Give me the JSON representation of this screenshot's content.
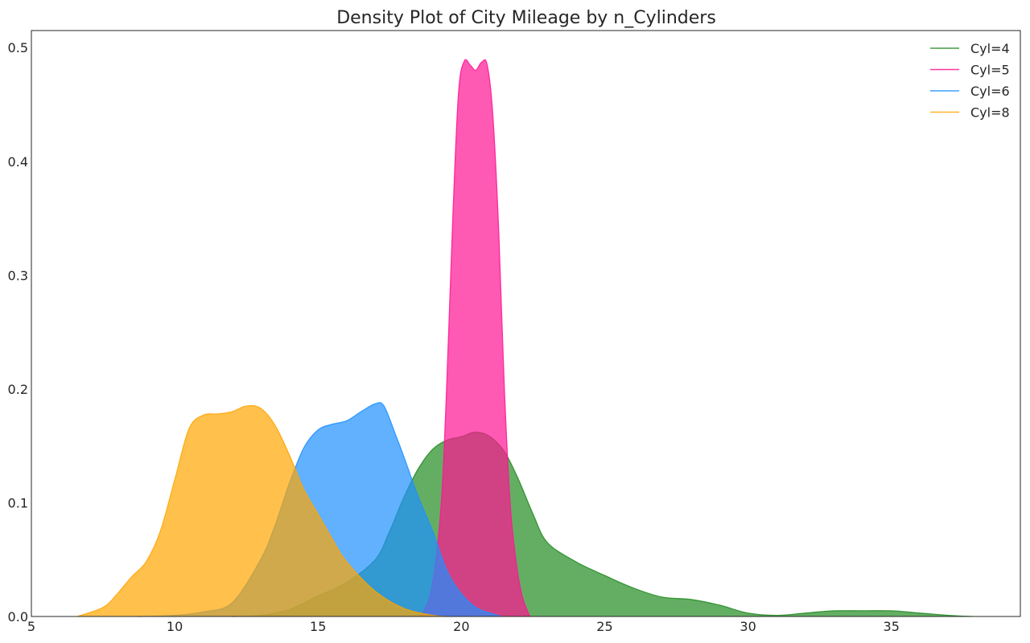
{
  "chart_data": {
    "type": "area",
    "title": "Density Plot of City Mileage by n_Cylinders",
    "xlabel": "",
    "ylabel": "",
    "xlim": [
      5,
      39.5
    ],
    "ylim": [
      0,
      0.515
    ],
    "xticks": [
      5,
      10,
      15,
      20,
      25,
      30,
      35
    ],
    "yticks": [
      0.0,
      0.1,
      0.2,
      0.3,
      0.4,
      0.5
    ],
    "xtick_labels": [
      "5",
      "10",
      "15",
      "20",
      "25",
      "30",
      "35"
    ],
    "ytick_labels": [
      "0.0",
      "0.1",
      "0.2",
      "0.3",
      "0.4",
      "0.5"
    ],
    "grid": false,
    "legend_position": "top-right",
    "series": [
      {
        "name": "Cyl=4",
        "color": "#228b22",
        "x": [
          12.0,
          13.0,
          14.0,
          15.0,
          16.0,
          17.0,
          17.5,
          18.0,
          18.5,
          19.0,
          19.5,
          20.0,
          20.5,
          21.0,
          21.5,
          22.0,
          22.5,
          23.0,
          24.0,
          25.0,
          26.0,
          27.0,
          28.0,
          29.0,
          30.0,
          31.0,
          32.0,
          33.0,
          34.0,
          35.0,
          36.0,
          37.0,
          37.8
        ],
        "y": [
          0.0,
          0.001,
          0.006,
          0.018,
          0.03,
          0.05,
          0.075,
          0.105,
          0.13,
          0.147,
          0.155,
          0.158,
          0.162,
          0.158,
          0.145,
          0.12,
          0.09,
          0.065,
          0.048,
          0.036,
          0.025,
          0.017,
          0.015,
          0.01,
          0.003,
          0.001,
          0.003,
          0.005,
          0.005,
          0.005,
          0.003,
          0.001,
          0.0
        ]
      },
      {
        "name": "Cyl=5",
        "color": "#ff1493",
        "x": [
          18.5,
          18.7,
          19.0,
          19.3,
          19.5,
          19.7,
          19.9,
          20.1,
          20.3,
          20.5,
          20.7,
          20.9,
          21.1,
          21.3,
          21.5,
          21.7,
          21.9,
          22.1,
          22.3,
          22.4
        ],
        "y": [
          0.0,
          0.005,
          0.03,
          0.1,
          0.21,
          0.35,
          0.46,
          0.488,
          0.485,
          0.48,
          0.487,
          0.485,
          0.44,
          0.34,
          0.2,
          0.1,
          0.05,
          0.02,
          0.005,
          0.0
        ]
      },
      {
        "name": "Cyl=6",
        "color": "#1e90ff",
        "x": [
          8.7,
          10.0,
          11.0,
          12.0,
          13.0,
          13.5,
          14.0,
          14.5,
          15.0,
          15.5,
          16.0,
          16.5,
          17.0,
          17.3,
          17.7,
          18.0,
          18.5,
          19.0,
          19.5,
          20.0,
          20.5,
          21.0,
          21.4
        ],
        "y": [
          0.0,
          0.001,
          0.004,
          0.012,
          0.05,
          0.08,
          0.117,
          0.148,
          0.164,
          0.169,
          0.172,
          0.18,
          0.187,
          0.185,
          0.16,
          0.14,
          0.105,
          0.075,
          0.04,
          0.02,
          0.008,
          0.003,
          0.0
        ]
      },
      {
        "name": "Cyl=8",
        "color": "#ffa500",
        "x": [
          6.6,
          7.5,
          8.0,
          8.5,
          9.0,
          9.5,
          10.0,
          10.5,
          11.0,
          11.5,
          12.0,
          12.5,
          13.0,
          13.5,
          14.0,
          14.5,
          15.0,
          15.5,
          16.0,
          17.0,
          18.0,
          19.0,
          19.5
        ],
        "y": [
          0.0,
          0.008,
          0.02,
          0.035,
          0.048,
          0.075,
          0.12,
          0.165,
          0.177,
          0.178,
          0.18,
          0.185,
          0.183,
          0.168,
          0.142,
          0.112,
          0.09,
          0.068,
          0.048,
          0.022,
          0.007,
          0.001,
          0.0
        ]
      }
    ]
  }
}
